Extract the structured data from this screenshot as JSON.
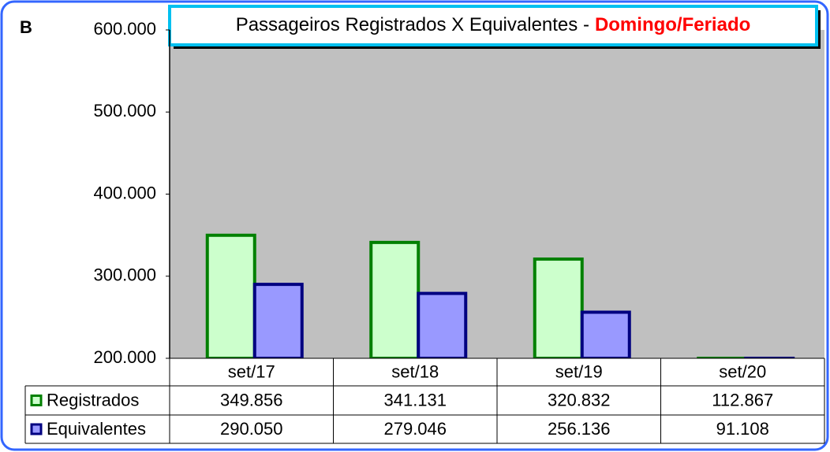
{
  "chart_data": {
    "type": "bar",
    "panel_label": "B",
    "title": "Passageiros Registrados X Equivalentes -",
    "title_emphasis": "Domingo/Feriado",
    "categories": [
      "set/17",
      "set/18",
      "set/19",
      "set/20"
    ],
    "series": [
      {
        "name": "Registrados",
        "color": "#008000",
        "fill": "#ccffcc",
        "values": [
          349856,
          341131,
          320832,
          112867
        ],
        "value_labels": [
          "349.856",
          "341.131",
          "320.832",
          "112.867"
        ]
      },
      {
        "name": "Equivalentes",
        "color": "#000080",
        "fill": "#9999ff",
        "values": [
          290050,
          279046,
          256136,
          91108
        ],
        "value_labels": [
          "290.050",
          "279.046",
          "256.136",
          "91.108"
        ]
      }
    ],
    "ylim": [
      200000,
      600000
    ],
    "yticks": [
      {
        "value": 200000,
        "label": "200.000"
      },
      {
        "value": 300000,
        "label": "300.000"
      },
      {
        "value": 400000,
        "label": "400.000"
      },
      {
        "value": 500000,
        "label": "500.000"
      },
      {
        "value": 600000,
        "label": "600.000"
      }
    ],
    "plot_background": "#c0c0c0"
  }
}
